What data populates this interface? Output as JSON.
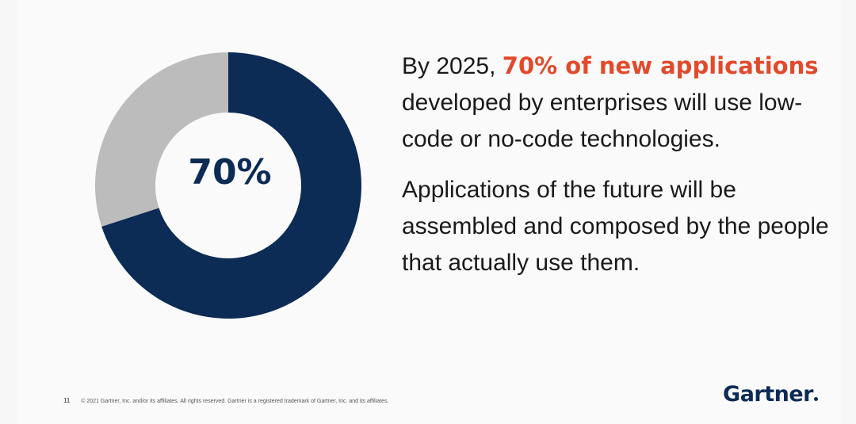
{
  "chart_data": {
    "type": "pie",
    "variant": "donut",
    "center_label": "70%",
    "slices": [
      {
        "value": 70,
        "color": "#0c2b55"
      },
      {
        "value": 30,
        "color": "#bcbcbc"
      }
    ]
  },
  "headline": {
    "prefix": "By 2025, ",
    "highlight": "70% of new applications",
    "suffix": " developed by enterprises will use low-code or no-code technologies."
  },
  "body_text": "Applications of the future will be assembled and composed by the people that actually use them.",
  "footer": {
    "page_number": "11",
    "copyright": "© 2021 Gartner, Inc. and/or its affiliates. All rights reserved. Gartner is a registered trademark of Gartner, Inc. and its affiliates."
  },
  "logo": {
    "text": "Gartner"
  },
  "colors": {
    "primary": "#0c2b55",
    "accent": "#e24a2b",
    "muted": "#bcbcbc"
  }
}
